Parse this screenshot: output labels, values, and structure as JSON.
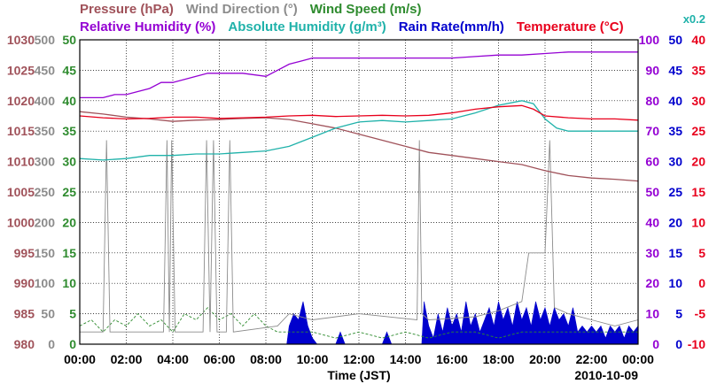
{
  "chart_data": {
    "type": "line",
    "legend": {
      "row1": [
        {
          "key": "pressure",
          "text": "Pressure (hPa)",
          "color": "#a0525a"
        },
        {
          "key": "wind_direction",
          "text": "Wind Direction (°)",
          "color": "#8c8c8c"
        },
        {
          "key": "wind_speed",
          "text": "Wind Speed (m/s)",
          "color": "#2e8b2e"
        }
      ],
      "row2": [
        {
          "key": "relative_humidity",
          "text": "Relative Humidity (%)",
          "color": "#9400d3"
        },
        {
          "key": "absolute_humidity",
          "text": "Absolute Humidity (g/m³)",
          "color": "#20b2aa"
        },
        {
          "key": "rain_rate",
          "text": "Rain Rate(mm/h)",
          "color": "#0000cd"
        },
        {
          "key": "temperature",
          "text": "Temperature (°C)",
          "color": "#e8001c"
        }
      ],
      "scale_note": "x0.2"
    },
    "xlabel": "Time (JST)",
    "date": "2010-10-09",
    "x_ticks": [
      "00:00",
      "02:00",
      "04:00",
      "06:00",
      "08:00",
      "10:00",
      "12:00",
      "14:00",
      "16:00",
      "18:00",
      "20:00",
      "22:00",
      "00:00"
    ],
    "xlim_hours": [
      0,
      24
    ],
    "grid": true,
    "axes": {
      "pressure": {
        "ticks": [
          "1030",
          "1025",
          "1020",
          "1015",
          "1010",
          "1005",
          "1000",
          "995",
          "990",
          "985",
          "980"
        ],
        "range": [
          980,
          1030
        ],
        "color": "#a0525a"
      },
      "wind_direction": {
        "ticks": [
          "500",
          "450",
          "400",
          "350",
          "300",
          "250",
          "200",
          "150",
          "100",
          "50",
          "0"
        ],
        "range": [
          0,
          500
        ],
        "color": "#8c8c8c"
      },
      "wind_speed": {
        "ticks": [
          "50",
          "45",
          "40",
          "35",
          "30",
          "25",
          "20",
          "15",
          "10",
          "5",
          "0"
        ],
        "range": [
          0,
          50
        ],
        "color": "#2e8b2e"
      },
      "relative_humidity": {
        "ticks": [
          "100",
          "90",
          "80",
          "70",
          "60",
          "50",
          "40",
          "30",
          "20",
          "10",
          "0"
        ],
        "range": [
          0,
          100
        ],
        "color": "#9400d3"
      },
      "rain_rate": {
        "ticks": [
          "50",
          "45",
          "40",
          "35",
          "30",
          "25",
          "20",
          "15",
          "10",
          "5",
          "0"
        ],
        "range": [
          0,
          50
        ],
        "color": "#0000cd"
      },
      "temperature": {
        "ticks": [
          "40",
          "35",
          "30",
          "25",
          "20",
          "15",
          "10",
          "5",
          "0",
          "-5",
          "-10"
        ],
        "range": [
          -10,
          40
        ],
        "color": "#e8001c"
      }
    },
    "series": [
      {
        "key": "pressure",
        "name": "Pressure (hPa)",
        "color": "#a0525a",
        "points": [
          [
            0,
            1018.2
          ],
          [
            1,
            1017.8
          ],
          [
            2,
            1017.3
          ],
          [
            3,
            1017.0
          ],
          [
            4,
            1016.6
          ],
          [
            5,
            1016.8
          ],
          [
            6,
            1016.9
          ],
          [
            7,
            1017.1
          ],
          [
            8,
            1017.2
          ],
          [
            9,
            1016.9
          ],
          [
            10,
            1016.2
          ],
          [
            11,
            1015.5
          ],
          [
            12,
            1014.5
          ],
          [
            13,
            1013.5
          ],
          [
            14,
            1012.5
          ],
          [
            15,
            1011.5
          ],
          [
            16,
            1011.0
          ],
          [
            17,
            1010.5
          ],
          [
            18,
            1010.0
          ],
          [
            19,
            1009.5
          ],
          [
            20,
            1008.5
          ],
          [
            21,
            1007.7
          ],
          [
            22,
            1007.3
          ],
          [
            23,
            1007.1
          ],
          [
            24,
            1006.8
          ]
        ]
      },
      {
        "key": "relative_humidity",
        "name": "Relative Humidity (%)",
        "color": "#9400d3",
        "points": [
          [
            0,
            81
          ],
          [
            1,
            81
          ],
          [
            1.5,
            82
          ],
          [
            2,
            82
          ],
          [
            3,
            84
          ],
          [
            3.5,
            86
          ],
          [
            4,
            86
          ],
          [
            5,
            88
          ],
          [
            5.5,
            89
          ],
          [
            6,
            89
          ],
          [
            7,
            89
          ],
          [
            8,
            88
          ],
          [
            8.5,
            90
          ],
          [
            9,
            92
          ],
          [
            9.5,
            93
          ],
          [
            10,
            94
          ],
          [
            11,
            94
          ],
          [
            12,
            94
          ],
          [
            13,
            94
          ],
          [
            14,
            94
          ],
          [
            15,
            94
          ],
          [
            16,
            94
          ],
          [
            17,
            94.5
          ],
          [
            18,
            95
          ],
          [
            19,
            95
          ],
          [
            20,
            95.5
          ],
          [
            21,
            96
          ],
          [
            22,
            96
          ],
          [
            23,
            96
          ],
          [
            24,
            96
          ]
        ]
      },
      {
        "key": "absolute_humidity",
        "name": "Absolute Humidity (g/m³)",
        "color": "#20b2aa",
        "points": [
          [
            0,
            61
          ],
          [
            1,
            60.5
          ],
          [
            2,
            61
          ],
          [
            3,
            62
          ],
          [
            4,
            62
          ],
          [
            5,
            62.5
          ],
          [
            6,
            62.5
          ],
          [
            7,
            63
          ],
          [
            8,
            63.5
          ],
          [
            9,
            65
          ],
          [
            10,
            68
          ],
          [
            11,
            71
          ],
          [
            12,
            73
          ],
          [
            13,
            73.5
          ],
          [
            14,
            73
          ],
          [
            15,
            73.5
          ],
          [
            16,
            74
          ],
          [
            17,
            76
          ],
          [
            18,
            78.5
          ],
          [
            19,
            80
          ],
          [
            19.5,
            79
          ],
          [
            20,
            74
          ],
          [
            20.5,
            71
          ],
          [
            21,
            70
          ],
          [
            22,
            70
          ],
          [
            23,
            70
          ],
          [
            24,
            70
          ]
        ]
      },
      {
        "key": "temperature",
        "name": "Temperature (°C)",
        "color": "#e8001c",
        "points": [
          [
            0,
            27.5
          ],
          [
            1,
            27.2
          ],
          [
            2,
            27.0
          ],
          [
            3,
            27.1
          ],
          [
            4,
            27.3
          ],
          [
            5,
            27.3
          ],
          [
            6,
            27.1
          ],
          [
            7,
            27.2
          ],
          [
            8,
            27.3
          ],
          [
            9,
            27.5
          ],
          [
            10,
            27.6
          ],
          [
            11,
            27.4
          ],
          [
            12,
            27.5
          ],
          [
            13,
            27.6
          ],
          [
            14,
            27.5
          ],
          [
            15,
            27.6
          ],
          [
            16,
            28.0
          ],
          [
            17,
            28.6
          ],
          [
            18,
            29.0
          ],
          [
            19,
            29.2
          ],
          [
            19.5,
            28.6
          ],
          [
            20,
            27.5
          ],
          [
            21,
            27.2
          ],
          [
            22,
            27.0
          ],
          [
            23,
            27.0
          ],
          [
            24,
            26.8
          ]
        ]
      },
      {
        "key": "wind_direction",
        "name": "Wind Direction (°)",
        "color": "#8c8c8c",
        "points": [
          [
            0,
            20
          ],
          [
            1.0,
            20
          ],
          [
            1.15,
            335
          ],
          [
            1.3,
            20
          ],
          [
            3.6,
            20
          ],
          [
            3.75,
            335
          ],
          [
            3.85,
            20
          ],
          [
            3.95,
            335
          ],
          [
            4.1,
            20
          ],
          [
            5.3,
            20
          ],
          [
            5.45,
            335
          ],
          [
            5.6,
            20
          ],
          [
            5.75,
            335
          ],
          [
            5.9,
            20
          ],
          [
            6.3,
            20
          ],
          [
            6.45,
            335
          ],
          [
            6.6,
            20
          ],
          [
            8.5,
            30
          ],
          [
            9.0,
            50
          ],
          [
            10,
            40
          ],
          [
            12,
            50
          ],
          [
            14.5,
            40
          ],
          [
            14.6,
            335
          ],
          [
            14.7,
            50
          ],
          [
            15,
            40
          ],
          [
            17,
            45
          ],
          [
            18,
            55
          ],
          [
            19,
            70
          ],
          [
            19.3,
            150
          ],
          [
            19.6,
            150
          ],
          [
            20,
            150
          ],
          [
            20.2,
            335
          ],
          [
            20.4,
            60
          ],
          [
            21,
            50
          ],
          [
            22,
            40
          ],
          [
            23,
            30
          ],
          [
            24,
            40
          ]
        ]
      },
      {
        "key": "wind_speed",
        "name": "Wind Speed (m/s)",
        "color": "#2e8b2e",
        "points": [
          [
            0,
            3
          ],
          [
            0.5,
            4
          ],
          [
            1,
            2
          ],
          [
            1.5,
            4
          ],
          [
            2,
            3
          ],
          [
            2.5,
            5
          ],
          [
            3,
            3
          ],
          [
            3.5,
            4
          ],
          [
            4,
            2
          ],
          [
            4.5,
            5
          ],
          [
            5,
            4
          ],
          [
            5.5,
            6
          ],
          [
            6,
            4
          ],
          [
            6.5,
            5
          ],
          [
            7,
            3
          ],
          [
            7.5,
            5
          ],
          [
            8,
            3
          ],
          [
            8.5,
            2
          ],
          [
            9,
            2
          ],
          [
            10,
            2
          ],
          [
            11,
            1
          ],
          [
            12,
            2
          ],
          [
            13,
            1
          ],
          [
            14,
            2
          ],
          [
            15,
            1
          ],
          [
            16,
            2
          ],
          [
            17,
            2
          ],
          [
            18,
            1
          ],
          [
            19,
            2
          ],
          [
            20,
            2
          ],
          [
            21,
            2
          ],
          [
            22,
            2
          ],
          [
            23,
            2
          ],
          [
            24,
            2
          ]
        ]
      },
      {
        "key": "rain_rate",
        "name": "Rain Rate(mm/h)",
        "color": "#0000cd",
        "fill": true,
        "points": [
          [
            0,
            0
          ],
          [
            8.9,
            0
          ],
          [
            9,
            3
          ],
          [
            9.2,
            5
          ],
          [
            9.4,
            4
          ],
          [
            9.6,
            7
          ],
          [
            9.8,
            3
          ],
          [
            10,
            1
          ],
          [
            10.2,
            0
          ],
          [
            11,
            0
          ],
          [
            11.2,
            2
          ],
          [
            11.4,
            0
          ],
          [
            13,
            0
          ],
          [
            13.2,
            2
          ],
          [
            13.4,
            0
          ],
          [
            14.7,
            0
          ],
          [
            14.8,
            7
          ],
          [
            15,
            3
          ],
          [
            15.2,
            1
          ],
          [
            15.4,
            5
          ],
          [
            15.6,
            2
          ],
          [
            15.8,
            6
          ],
          [
            16,
            3
          ],
          [
            16.2,
            5
          ],
          [
            16.4,
            2
          ],
          [
            16.6,
            7
          ],
          [
            16.8,
            3
          ],
          [
            17,
            5
          ],
          [
            17.2,
            2
          ],
          [
            17.4,
            4
          ],
          [
            17.6,
            6
          ],
          [
            17.8,
            3
          ],
          [
            18,
            7
          ],
          [
            18.2,
            4
          ],
          [
            18.4,
            6
          ],
          [
            18.6,
            3
          ],
          [
            18.8,
            7
          ],
          [
            19,
            4
          ],
          [
            19.2,
            6
          ],
          [
            19.4,
            3
          ],
          [
            19.6,
            7
          ],
          [
            19.8,
            4
          ],
          [
            20,
            6
          ],
          [
            20.2,
            3
          ],
          [
            20.4,
            6
          ],
          [
            20.6,
            4
          ],
          [
            20.8,
            5
          ],
          [
            21,
            3
          ],
          [
            21.2,
            6
          ],
          [
            21.4,
            2
          ],
          [
            21.6,
            3
          ],
          [
            21.8,
            2
          ],
          [
            22,
            3
          ],
          [
            22.2,
            2
          ],
          [
            22.4,
            3
          ],
          [
            22.6,
            1
          ],
          [
            22.8,
            3
          ],
          [
            23,
            2
          ],
          [
            23.2,
            3
          ],
          [
            23.4,
            1
          ],
          [
            23.6,
            3
          ],
          [
            23.8,
            2
          ],
          [
            24,
            3
          ]
        ]
      }
    ]
  }
}
